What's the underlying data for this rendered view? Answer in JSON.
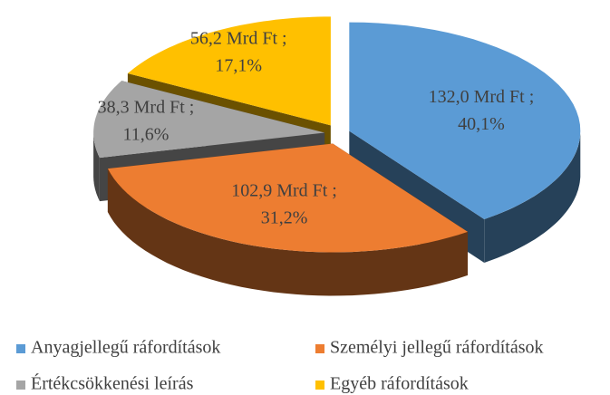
{
  "chart_data": {
    "type": "pie",
    "categories": [
      "Anyagjellegű ráfordítások",
      "Személyi jellegű ráfordítások",
      "Értékcsökkenési leírás",
      "Egyéb ráfordítások"
    ],
    "values": [
      132.0,
      102.9,
      38.3,
      56.2
    ],
    "value_labels": [
      [
        "132,0 Mrd Ft ;",
        "40,1%"
      ],
      [
        "102,9 Mrd Ft ;",
        "31,2%"
      ],
      [
        "38,3 Mrd Ft ;",
        "11,6%"
      ],
      [
        "56,2 Mrd Ft ;",
        "17,1%"
      ]
    ],
    "colors": [
      "#5b9bd5",
      "#ed7d31",
      "#a5a5a5",
      "#ffc000"
    ],
    "three_d": true,
    "exploded": true,
    "legend": "bottom"
  }
}
